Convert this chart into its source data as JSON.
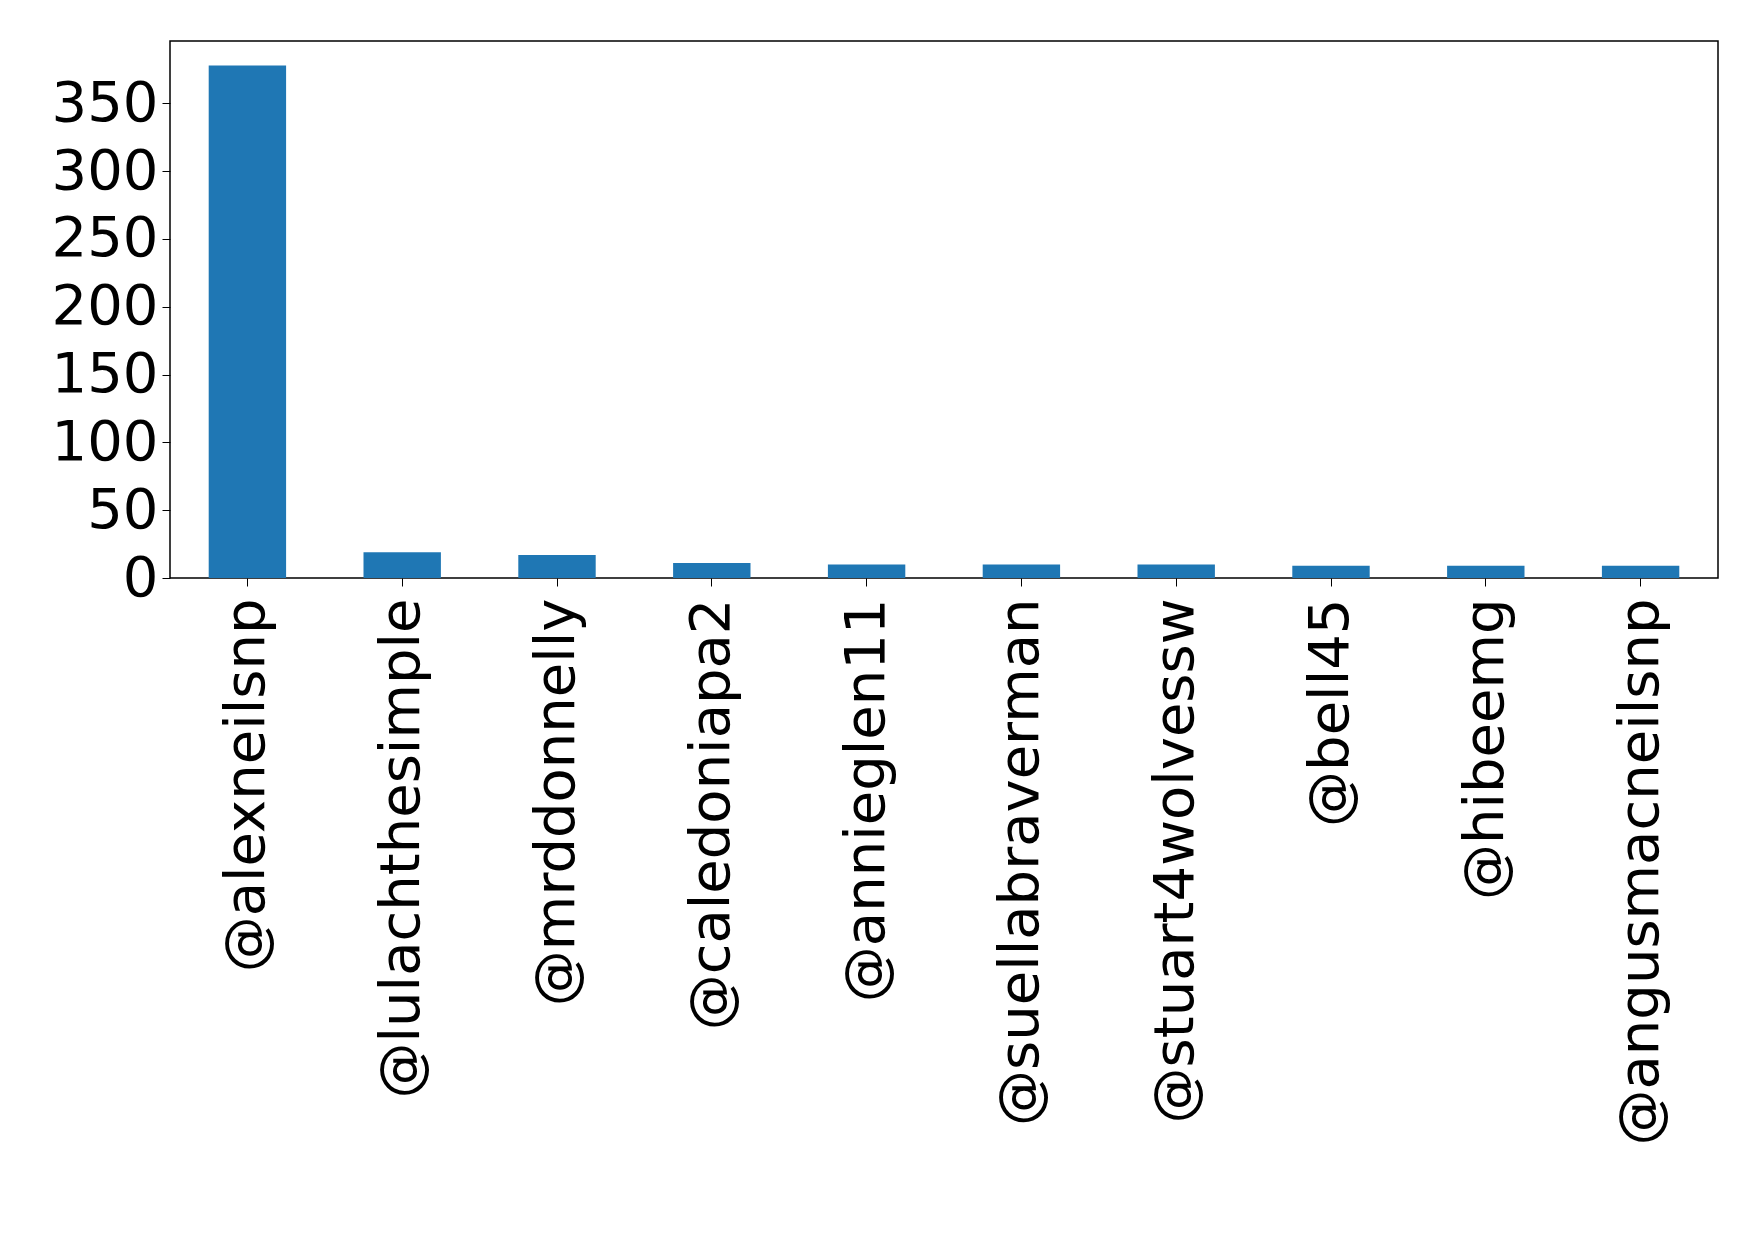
{
  "chart_data": {
    "type": "bar",
    "categories": [
      "@alexneilsnp",
      "@lulachthesimple",
      "@mrddonnelly",
      "@caledoniapa2",
      "@annieglen11",
      "@suellabraverman",
      "@stuart4wolvessw",
      "@bell45",
      "@hibeemg",
      "@angusmacneilsnp"
    ],
    "values": [
      378,
      19,
      17,
      11,
      10,
      10,
      10,
      9,
      9,
      9
    ],
    "color": "#1f77b4",
    "ylim": [
      0,
      396
    ],
    "yticks": [
      0,
      50,
      100,
      150,
      200,
      250,
      300,
      350
    ],
    "grid": false
  }
}
